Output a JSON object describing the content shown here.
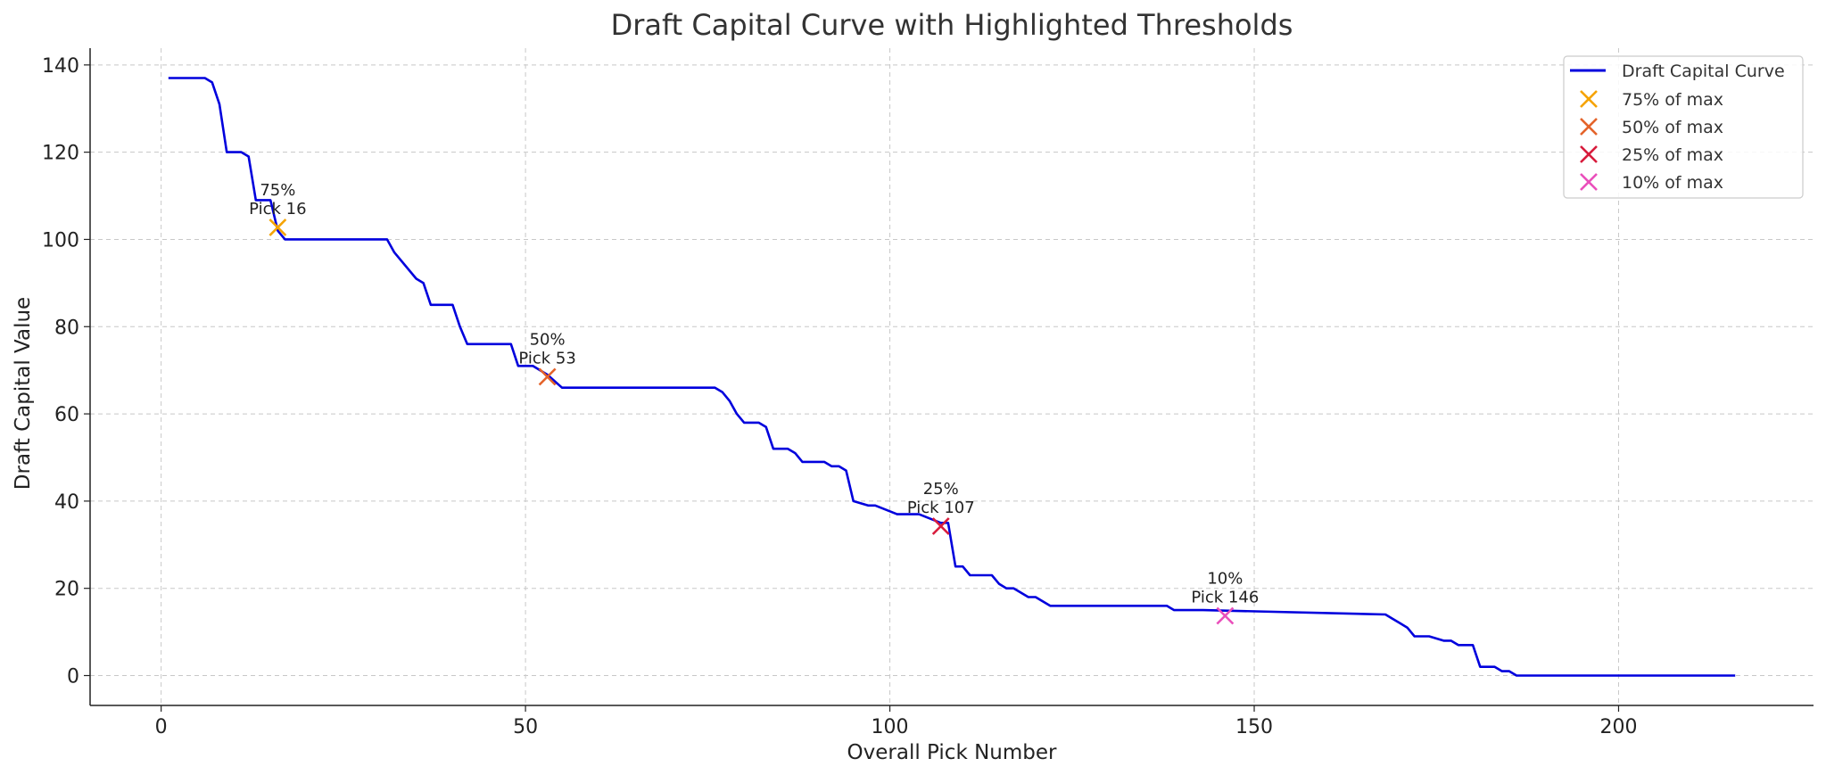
{
  "chart_data": {
    "type": "line",
    "title": "Draft Capital Curve with Highlighted Thresholds",
    "xlabel": "Overall Pick Number",
    "ylabel": "Draft Capital Value",
    "xlim": [
      -9.75,
      226.75
    ],
    "ylim": [
      -6.85,
      143.85
    ],
    "xticks": [
      0,
      50,
      100,
      150,
      200
    ],
    "yticks": [
      0,
      20,
      40,
      60,
      80,
      100,
      120,
      140
    ],
    "grid": true,
    "legend_position": "top-right",
    "colors": {
      "curve": "#0000dd",
      "t75": "#f5a300",
      "t50": "#e4632a",
      "t25": "#d81b3c",
      "t10": "#ea4fbb",
      "grid": "#c8c8c8",
      "axis": "#222222"
    },
    "series": [
      {
        "name": "Draft Capital Curve",
        "x": [
          1,
          6,
          7,
          8,
          9,
          11,
          12,
          13,
          15,
          16,
          17,
          31,
          32,
          35,
          36,
          37,
          40,
          41,
          42,
          48,
          49,
          51,
          53,
          55,
          76,
          77,
          78,
          79,
          80,
          82,
          83,
          84,
          86,
          87,
          88,
          91,
          92,
          93,
          94,
          95,
          97,
          98,
          101,
          103,
          104,
          107,
          108,
          109,
          110,
          111,
          112,
          114,
          115,
          116,
          117,
          118,
          119,
          120,
          121,
          122,
          138,
          139,
          141,
          143,
          168,
          169,
          170,
          171,
          172,
          173,
          174,
          176,
          177,
          178,
          180,
          181,
          183,
          184,
          185,
          186,
          187,
          216
        ],
        "y": [
          137,
          137,
          136,
          131,
          120,
          120,
          119,
          109,
          109,
          102,
          100,
          100,
          97,
          91,
          90,
          85,
          85,
          80,
          76,
          76,
          71,
          71,
          69,
          66,
          66,
          65,
          63,
          60,
          58,
          58,
          57,
          52,
          52,
          51,
          49,
          49,
          48,
          48,
          47,
          40,
          39,
          39,
          37,
          37,
          37,
          35,
          35,
          25,
          25,
          23,
          23,
          23,
          21,
          20,
          20,
          19,
          18,
          18,
          17,
          16,
          16,
          15,
          15,
          15,
          14,
          13,
          12,
          11,
          9,
          9,
          9,
          8,
          8,
          7,
          7,
          2,
          2,
          1,
          1,
          0,
          0,
          0
        ]
      }
    ],
    "thresholds": [
      {
        "name": "75% of max",
        "pct_label": "75%",
        "pick_label": "Pick 16",
        "x": 16,
        "y": 102.75
      },
      {
        "name": "50% of max",
        "pct_label": "50%",
        "pick_label": "Pick 53",
        "x": 53,
        "y": 68.5
      },
      {
        "name": "25% of max",
        "pct_label": "25%",
        "pick_label": "Pick 107",
        "x": 107,
        "y": 34.25
      },
      {
        "name": "10% of max",
        "pct_label": "10%",
        "pick_label": "Pick 146",
        "x": 146,
        "y": 13.7
      }
    ]
  }
}
